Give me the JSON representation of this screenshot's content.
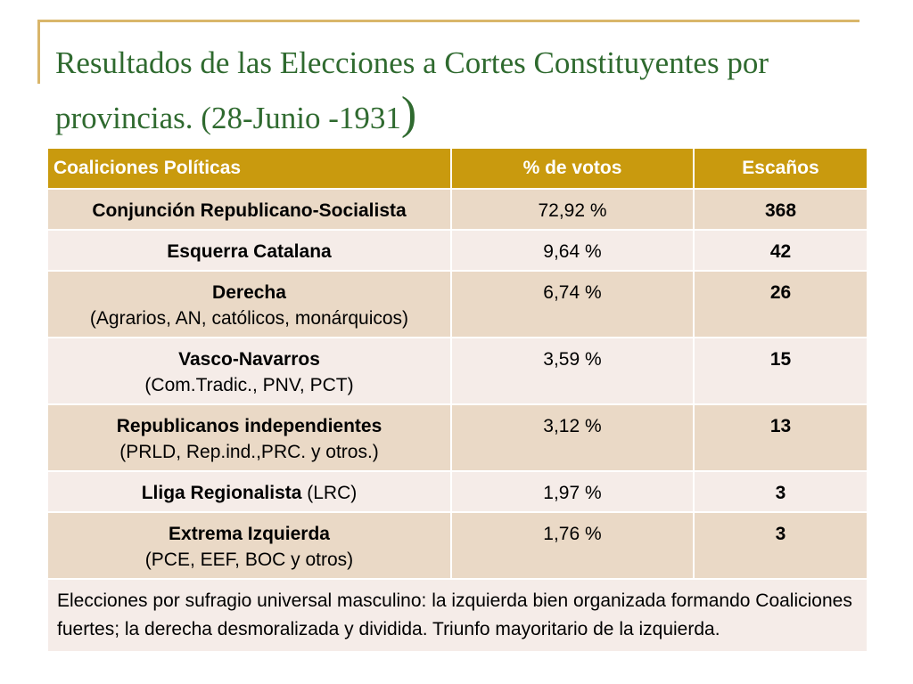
{
  "slide": {
    "title_main": "Resultados  de las Elecciones a Cortes Constituyentes por provincias. (28-Junio -1931",
    "title_paren": ")"
  },
  "table": {
    "headers": [
      "Coaliciones Políticas",
      "% de votos",
      "Escaños"
    ],
    "rows": [
      {
        "name": "Conjunción Republicano-Socialista",
        "sub": "",
        "votes": "72,92 %",
        "seats": "368"
      },
      {
        "name": "Esquerra  Catalana",
        "sub": "",
        "votes": "9,64 %",
        "seats": "42"
      },
      {
        "name": "Derecha",
        "sub": "(Agrarios, AN, católicos, monárquicos)",
        "votes": "6,74 %",
        "seats": "26"
      },
      {
        "name": "Vasco-Navarros",
        "sub": "(Com.Tradic., PNV, PCT)",
        "votes": "3,59 %",
        "seats": "15"
      },
      {
        "name": "Republicanos independientes",
        "sub": "(PRLD, Rep.ind.,PRC. y otros.)",
        "votes": "3,12 %",
        "seats": "13"
      },
      {
        "name": "Lliga Regionalista",
        "sub": " (LRC)",
        "votes": "1,97 %",
        "seats": "3"
      },
      {
        "name": "Extrema Izquierda",
        "sub": "(PCE,  EEF, BOC y otros)",
        "votes": "1,76 %",
        "seats": "3"
      }
    ],
    "note": "Elecciones por sufragio universal masculino: la izquierda bien organizada formando Coaliciones fuertes; la derecha desmoralizada y dividida. Triunfo mayoritario de la izquierda."
  },
  "colors": {
    "title": "#2f6a2f",
    "header_bg": "#c99a0e",
    "row_dark": "#ead9c6",
    "row_light": "#f5ece8",
    "frame": "#d9b66a"
  }
}
